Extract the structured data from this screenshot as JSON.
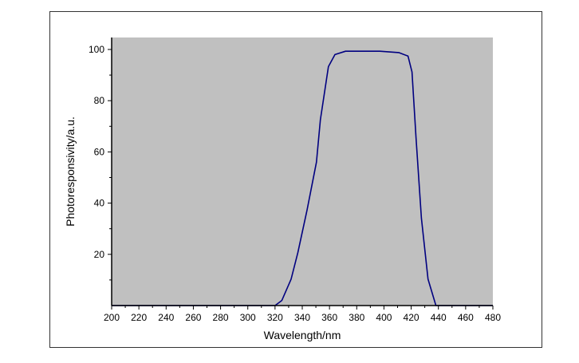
{
  "chart_data": {
    "type": "line",
    "title": "",
    "xlabel": "Wavelength/nm",
    "ylabel": "Photoresponsivity/a.u.",
    "xlim": [
      200,
      480
    ],
    "ylim": [
      0,
      105
    ],
    "xticks": [
      200,
      220,
      240,
      260,
      280,
      300,
      320,
      340,
      360,
      380,
      400,
      420,
      440,
      460,
      480
    ],
    "yticks": [
      20,
      40,
      60,
      80,
      100
    ],
    "grid": false,
    "plot_background": "#c0c0c0",
    "line_color": "#000080",
    "series": [
      {
        "x": [
          200,
          320,
          325,
          331.8,
          336.7,
          343.5,
          350.4,
          353.3,
          359.2,
          364,
          371.8,
          397,
          410.9,
          417.7,
          420.6,
          423.6,
          427.5,
          432.4,
          438.2,
          480
        ],
        "y": [
          0,
          0,
          2,
          10.3,
          20.6,
          37.3,
          56,
          72.5,
          93.3,
          98,
          99.3,
          99.3,
          98.8,
          97.4,
          91.2,
          65.3,
          34.1,
          10.3,
          0,
          0
        ]
      }
    ]
  }
}
